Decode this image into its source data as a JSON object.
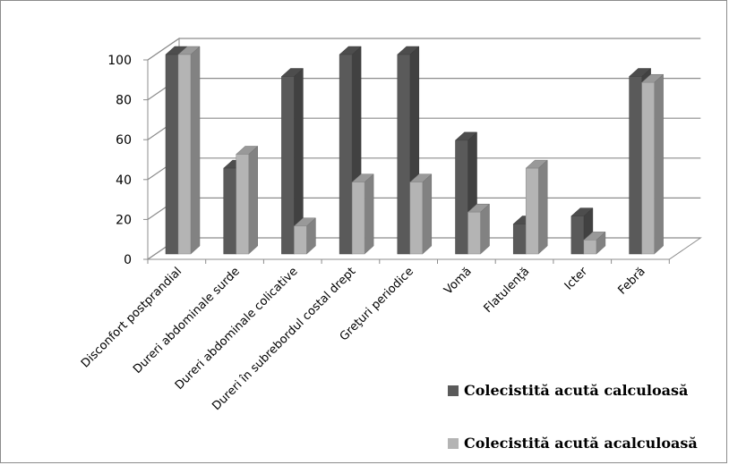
{
  "chart_data": {
    "type": "bar",
    "variant": "3d-clustered-column",
    "categories": [
      "Disconfort postprandial",
      "Dureri abdominale surde",
      "Dureri abdominale colicative",
      "Dureri în subrebordul costal drept",
      "Greţuri periodice",
      "Vomă",
      "Flatulenţă",
      "Icter",
      "Febră"
    ],
    "series": [
      {
        "name": "Colecistită acută calculoasă",
        "values": [
          100,
          43,
          89,
          100,
          100,
          57,
          15,
          19,
          89
        ],
        "color": "#5a5a5a"
      },
      {
        "name": "Colecistită acută acalculoasă",
        "values": [
          100,
          50,
          14,
          36,
          36,
          21,
          43,
          7,
          86
        ],
        "color": "#b4b4b4"
      }
    ],
    "ylim": [
      0,
      100
    ],
    "yticks": [
      0,
      20,
      40,
      60,
      80,
      100
    ],
    "grid": true,
    "legend_position": "bottom-right",
    "title": "",
    "xlabel": "",
    "ylabel": ""
  }
}
